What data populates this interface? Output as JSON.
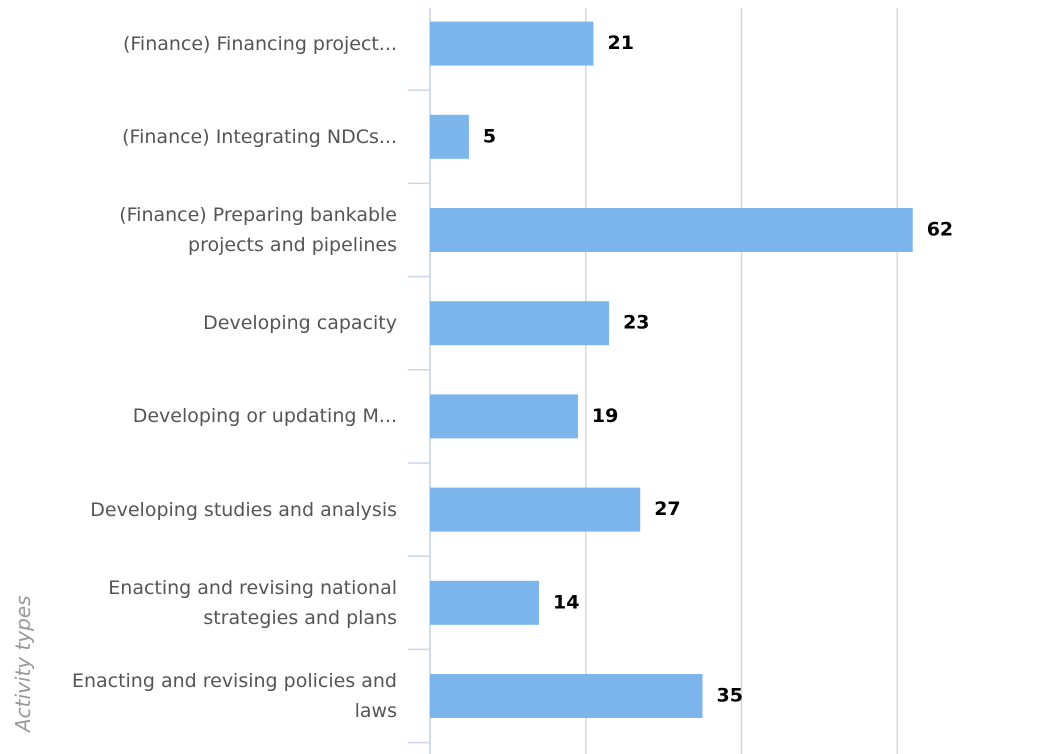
{
  "chart_data": {
    "type": "bar",
    "orientation": "horizontal",
    "y_axis_label": "Activity types",
    "categories": [
      "(Finance) Financing project...",
      "(Finance) Integrating NDCs...",
      "(Finance) Preparing bankable projects and pipelines",
      "Developing capacity",
      "Developing or updating M...",
      "Developing studies and analysis",
      "Enacting and revising national strategies and plans",
      "Enacting and revising policies and laws"
    ],
    "values": [
      21,
      5,
      62,
      23,
      19,
      27,
      14,
      35
    ],
    "color": "#7cb5ec",
    "xlim": [
      0,
      70
    ],
    "xticks": [
      0,
      20,
      40,
      60
    ],
    "grid": true
  }
}
